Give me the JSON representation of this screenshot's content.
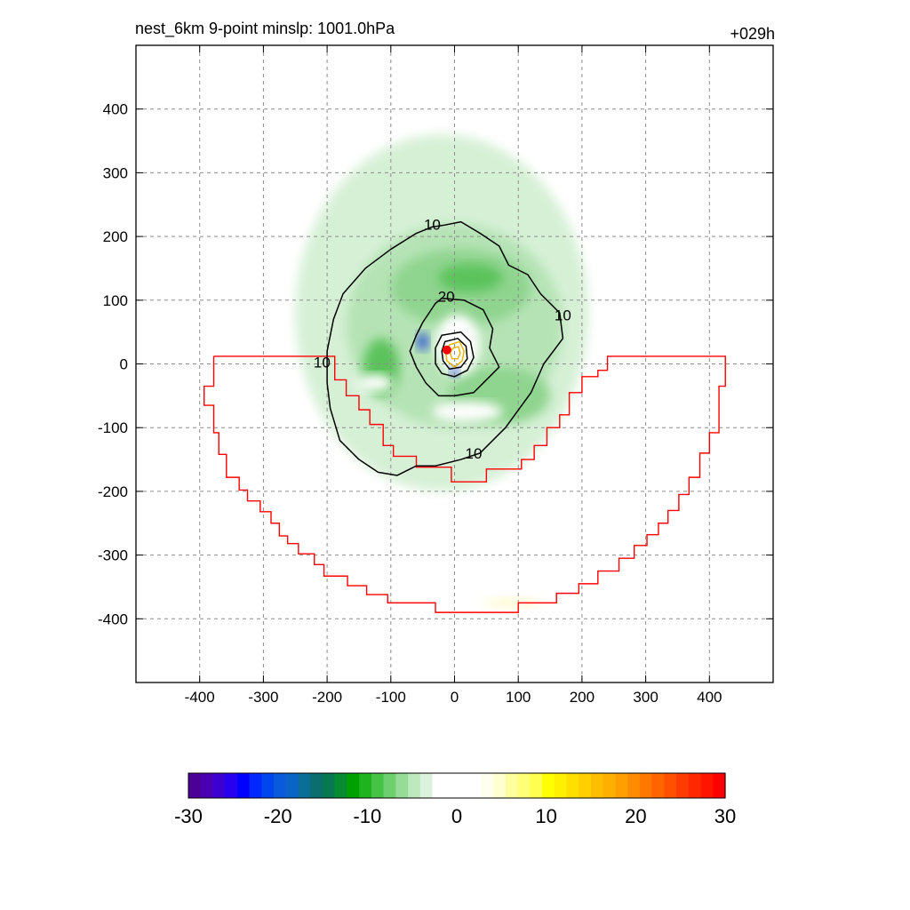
{
  "header": {
    "title": "nest_6km  9-point minslp: 1001.0hPa",
    "time_label": "+029h"
  },
  "chart_data": {
    "type": "heatmap",
    "title": "nest_6km  9-point minslp: 1001.0hPa",
    "xlabel": "",
    "ylabel": "",
    "xlim": [
      -500,
      500
    ],
    "ylim": [
      -500,
      500
    ],
    "xticks": [
      -400,
      -300,
      -200,
      -100,
      0,
      100,
      200,
      300,
      400
    ],
    "yticks": [
      -400,
      -300,
      -200,
      -100,
      0,
      100,
      200,
      300,
      400
    ],
    "x_tick_labels": [
      "-400",
      "-300",
      "-200",
      "-100",
      "0",
      "100",
      "200",
      "300",
      "400"
    ],
    "y_tick_labels": [
      "400",
      "300",
      "200",
      "100",
      "0",
      "-100",
      "-200",
      "-300",
      "-400"
    ],
    "grid": true,
    "contour_labels": [
      {
        "text": "10",
        "x": -35,
        "y": 219
      },
      {
        "text": "20",
        "x": -13,
        "y": 106
      },
      {
        "text": "10",
        "x": 170,
        "y": 77
      },
      {
        "text": "10",
        "x": -208,
        "y": 3
      },
      {
        "text": "10",
        "x": 30,
        "y": -140
      }
    ],
    "contours": [
      {
        "level": 10,
        "color": "#000000",
        "points": [
          [
            -15,
            218
          ],
          [
            10,
            223
          ],
          [
            40,
            205
          ],
          [
            70,
            185
          ],
          [
            85,
            155
          ],
          [
            115,
            140
          ],
          [
            135,
            110
          ],
          [
            165,
            80
          ],
          [
            170,
            40
          ],
          [
            140,
            0
          ],
          [
            120,
            -45
          ],
          [
            80,
            -100
          ],
          [
            40,
            -140
          ],
          [
            10,
            -150
          ],
          [
            -30,
            -160
          ],
          [
            -60,
            -160
          ],
          [
            -90,
            -175
          ],
          [
            -120,
            -170
          ],
          [
            -150,
            -150
          ],
          [
            -180,
            -120
          ],
          [
            -195,
            -70
          ],
          [
            -200,
            -30
          ],
          [
            -200,
            20
          ],
          [
            -190,
            70
          ],
          [
            -175,
            110
          ],
          [
            -140,
            150
          ],
          [
            -100,
            180
          ],
          [
            -60,
            205
          ],
          [
            -35,
            215
          ]
        ]
      },
      {
        "level": 20,
        "color": "#000000",
        "points": [
          [
            -20,
            103
          ],
          [
            15,
            100
          ],
          [
            45,
            85
          ],
          [
            60,
            55
          ],
          [
            55,
            25
          ],
          [
            70,
            -5
          ],
          [
            50,
            -25
          ],
          [
            30,
            -45
          ],
          [
            0,
            -50
          ],
          [
            -25,
            -50
          ],
          [
            -45,
            -30
          ],
          [
            -60,
            -5
          ],
          [
            -70,
            20
          ],
          [
            -60,
            45
          ],
          [
            -50,
            65
          ],
          [
            -30,
            95
          ]
        ]
      },
      {
        "level": 20,
        "color": "#000000",
        "points": [
          [
            -20,
            45
          ],
          [
            10,
            50
          ],
          [
            25,
            35
          ],
          [
            30,
            10
          ],
          [
            20,
            -10
          ],
          [
            0,
            -20
          ],
          [
            -20,
            -15
          ],
          [
            -30,
            0
          ],
          [
            -30,
            25
          ]
        ]
      },
      {
        "level": 20,
        "color": "#000000",
        "points": [
          [
            -15,
            35
          ],
          [
            5,
            40
          ],
          [
            18,
            28
          ],
          [
            20,
            8
          ],
          [
            10,
            -5
          ],
          [
            -8,
            -8
          ],
          [
            -18,
            5
          ],
          [
            -20,
            20
          ]
        ]
      },
      {
        "level": 30,
        "color": "#e6b800",
        "points": [
          [
            -8,
            30
          ],
          [
            8,
            35
          ],
          [
            15,
            20
          ],
          [
            12,
            5
          ],
          [
            0,
            -5
          ],
          [
            -12,
            5
          ],
          [
            -14,
            20
          ]
        ]
      },
      {
        "level": 30,
        "color": "#e6b800",
        "points": [
          [
            -2,
            25
          ],
          [
            6,
            27
          ],
          [
            9,
            17
          ],
          [
            5,
            8
          ],
          [
            -4,
            8
          ],
          [
            -7,
            18
          ]
        ]
      }
    ],
    "filled_regions": [
      {
        "value": -3,
        "color": "#d6f0d6",
        "cx": -20,
        "cy": 80,
        "rx": 230,
        "ry": 280
      },
      {
        "value": -5,
        "color": "#b5e3b5",
        "cx": 0,
        "cy": 60,
        "rx": 170,
        "ry": 160
      },
      {
        "value": -7,
        "color": "#8fd48f",
        "cx": 10,
        "cy": 120,
        "rx": 110,
        "ry": 60
      },
      {
        "value": -10,
        "color": "#5cc35c",
        "cx": 25,
        "cy": 135,
        "rx": 50,
        "ry": 22
      },
      {
        "value": -10,
        "color": "#5cc35c",
        "cx": -115,
        "cy": -5,
        "rx": 28,
        "ry": 45
      },
      {
        "value": -7,
        "color": "#8fd48f",
        "cx": 70,
        "cy": -50,
        "rx": 80,
        "ry": 45
      },
      {
        "value": 0,
        "color": "#ffffff",
        "cx": 5,
        "cy": 30,
        "rx": 35,
        "ry": 48
      },
      {
        "value": 0,
        "color": "#ffffff",
        "cx": 20,
        "cy": -75,
        "rx": 55,
        "ry": 16
      },
      {
        "value": 0,
        "color": "#ffffff",
        "cx": -125,
        "cy": -30,
        "rx": 28,
        "ry": 14
      },
      {
        "value": -20,
        "color": "#2a4bd7",
        "cx": -50,
        "cy": 35,
        "rx": 9,
        "ry": 14
      },
      {
        "value": -20,
        "color": "#2a4bd7",
        "cx": 0,
        "cy": -12,
        "rx": 7,
        "ry": 8
      },
      {
        "value": 4,
        "color": "#fffbd0",
        "cx": 90,
        "cy": -375,
        "rx": 45,
        "ry": 8
      }
    ],
    "storm_center": {
      "x": -12,
      "y": 22,
      "color": "#ff0000"
    },
    "boundary": {
      "color": "#ff0000",
      "points": [
        [
          -378,
          12
        ],
        [
          -188,
          12
        ],
        [
          -188,
          -25
        ],
        [
          -170,
          -25
        ],
        [
          -170,
          -50
        ],
        [
          -150,
          -50
        ],
        [
          -150,
          -72
        ],
        [
          -133,
          -72
        ],
        [
          -133,
          -95
        ],
        [
          -112,
          -95
        ],
        [
          -112,
          -128
        ],
        [
          -96,
          -128
        ],
        [
          -96,
          -145
        ],
        [
          -60,
          -145
        ],
        [
          -60,
          -162
        ],
        [
          -5,
          -162
        ],
        [
          -5,
          -185
        ],
        [
          50,
          -185
        ],
        [
          50,
          -165
        ],
        [
          105,
          -165
        ],
        [
          105,
          -150
        ],
        [
          125,
          -150
        ],
        [
          125,
          -128
        ],
        [
          145,
          -128
        ],
        [
          145,
          -100
        ],
        [
          165,
          -100
        ],
        [
          165,
          -80
        ],
        [
          180,
          -80
        ],
        [
          180,
          -45
        ],
        [
          200,
          -45
        ],
        [
          200,
          -20
        ],
        [
          225,
          -20
        ],
        [
          225,
          -10
        ],
        [
          240,
          -10
        ],
        [
          240,
          12
        ],
        [
          425,
          12
        ],
        [
          425,
          -35
        ],
        [
          415,
          -35
        ],
        [
          415,
          -108
        ],
        [
          400,
          -108
        ],
        [
          400,
          -140
        ],
        [
          385,
          -140
        ],
        [
          385,
          -178
        ],
        [
          368,
          -178
        ],
        [
          368,
          -205
        ],
        [
          352,
          -205
        ],
        [
          352,
          -230
        ],
        [
          335,
          -230
        ],
        [
          335,
          -250
        ],
        [
          320,
          -250
        ],
        [
          320,
          -268
        ],
        [
          302,
          -268
        ],
        [
          302,
          -285
        ],
        [
          282,
          -285
        ],
        [
          282,
          -305
        ],
        [
          258,
          -305
        ],
        [
          258,
          -325
        ],
        [
          225,
          -325
        ],
        [
          225,
          -345
        ],
        [
          195,
          -345
        ],
        [
          195,
          -360
        ],
        [
          160,
          -360
        ],
        [
          160,
          -375
        ],
        [
          100,
          -375
        ],
        [
          100,
          -390
        ],
        [
          -30,
          -390
        ],
        [
          -30,
          -375
        ],
        [
          -105,
          -375
        ],
        [
          -105,
          -362
        ],
        [
          -138,
          -362
        ],
        [
          -138,
          -348
        ],
        [
          -168,
          -348
        ],
        [
          -168,
          -333
        ],
        [
          -205,
          -333
        ],
        [
          -205,
          -315
        ],
        [
          -220,
          -315
        ],
        [
          -220,
          -298
        ],
        [
          -245,
          -298
        ],
        [
          -245,
          -282
        ],
        [
          -262,
          -282
        ],
        [
          -262,
          -270
        ],
        [
          -275,
          -270
        ],
        [
          -275,
          -250
        ],
        [
          -288,
          -250
        ],
        [
          -288,
          -232
        ],
        [
          -305,
          -232
        ],
        [
          -305,
          -215
        ],
        [
          -325,
          -215
        ],
        [
          -325,
          -198
        ],
        [
          -338,
          -198
        ],
        [
          -338,
          -178
        ],
        [
          -358,
          -178
        ],
        [
          -358,
          -142
        ],
        [
          -370,
          -142
        ],
        [
          -370,
          -108
        ],
        [
          -378,
          -108
        ],
        [
          -378,
          -65
        ],
        [
          -393,
          -65
        ],
        [
          -393,
          -35
        ],
        [
          -378,
          -35
        ],
        [
          -378,
          12
        ]
      ]
    },
    "colorbar": {
      "min": -30,
      "max": 30,
      "tick_labels": [
        "-30",
        "-20",
        "-10",
        "0",
        "10",
        "20",
        "30"
      ],
      "tick_values": [
        -30,
        -20,
        -10,
        0,
        10,
        20,
        30
      ],
      "colors": [
        "#4b0096",
        "#4a00b0",
        "#3c00d2",
        "#2800f0",
        "#0000ff",
        "#0028ff",
        "#0046ee",
        "#0a5adc",
        "#0a64c8",
        "#0a6e96",
        "#0a6e6e",
        "#087850",
        "#088c32",
        "#00a000",
        "#1eb41e",
        "#46c346",
        "#6ecf6e",
        "#96dc96",
        "#bee8be",
        "#dcf2dc",
        "#ffffff",
        "#ffffff",
        "#ffffff",
        "#ffffff",
        "#fffff0",
        "#ffffd0",
        "#ffffa0",
        "#ffff78",
        "#ffff50",
        "#ffff00",
        "#ffef00",
        "#ffdf00",
        "#ffcf00",
        "#ffbf00",
        "#ffaf00",
        "#ff9f00",
        "#ff8c00",
        "#ff7800",
        "#ff6400",
        "#ff5000",
        "#ff3c00",
        "#ff2800",
        "#ff1400",
        "#ff0000"
      ]
    }
  }
}
